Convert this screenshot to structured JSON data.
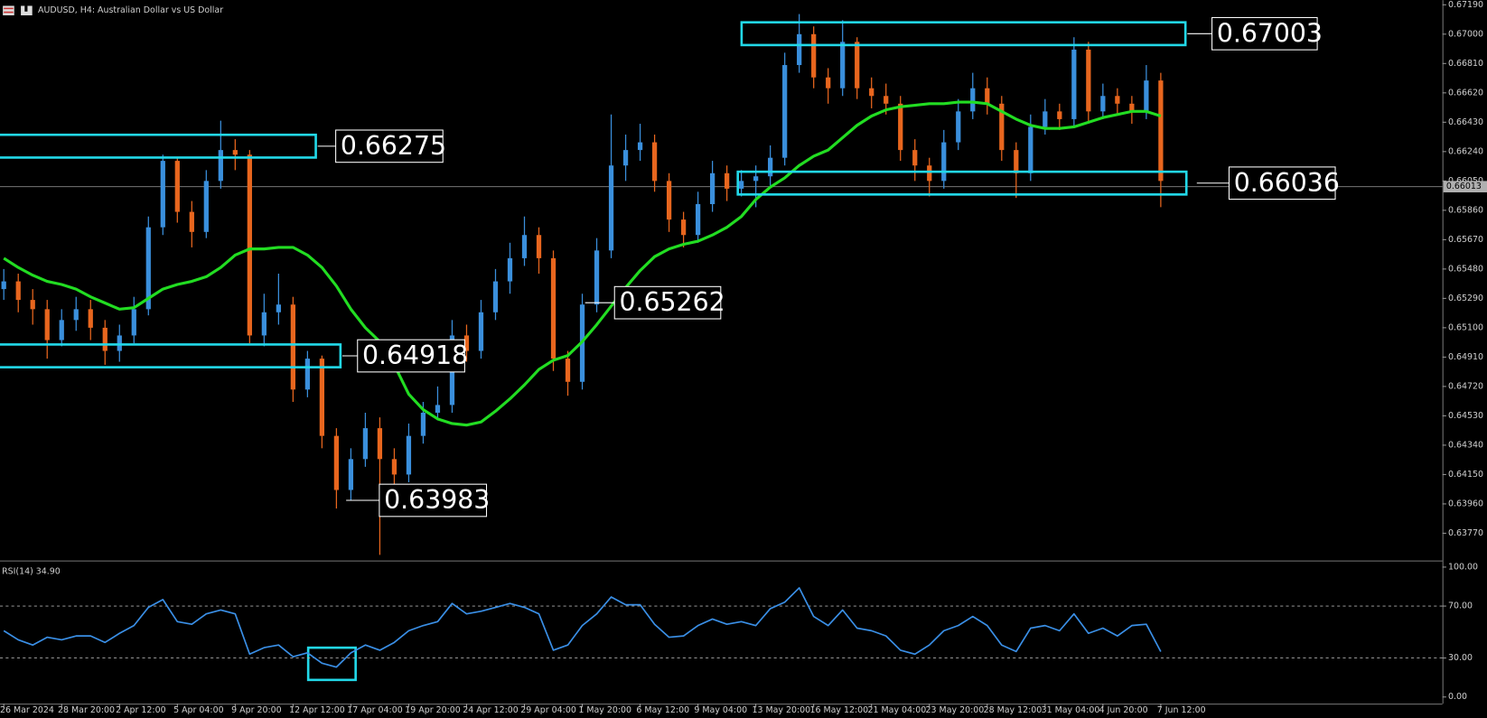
{
  "chart_data": [
    {
      "type": "candlestick",
      "title": "AUDUSD, H4:  Australian Dollar vs US Dollar",
      "categories": [
        "26 Mar 2024",
        null,
        null,
        null,
        "28 Mar 20:00",
        null,
        null,
        null,
        "2 Apr 12:00",
        null,
        null,
        null,
        "5 Apr 04:00",
        null,
        null,
        null,
        "9 Apr 20:00",
        null,
        null,
        null,
        "12 Apr 12:00",
        null,
        null,
        null,
        "17 Apr 04:00",
        null,
        null,
        null,
        "19 Apr 20:00",
        null,
        null,
        null,
        "24 Apr 12:00",
        null,
        null,
        null,
        "29 Apr 04:00",
        null,
        null,
        null,
        "1 May 20:00",
        null,
        null,
        null,
        "6 May 12:00",
        null,
        null,
        null,
        "9 May 04:00",
        null,
        null,
        null,
        "13 May 20:00",
        null,
        null,
        null,
        "16 May 12:00",
        null,
        null,
        null,
        "21 May 04:00",
        null,
        null,
        null,
        "23 May 20:00",
        null,
        null,
        null,
        "28 May 12:00",
        null,
        null,
        null,
        "31 May 04:00",
        null,
        null,
        null,
        "4 Jun 20:00",
        null,
        null,
        null,
        "7 Jun 12:00"
      ],
      "open": [
        0.6535,
        0.654,
        0.6528,
        0.6522,
        0.6502,
        0.6515,
        0.6522,
        0.651,
        0.6495,
        0.6505,
        0.6522,
        0.6575,
        0.6618,
        0.6585,
        0.6572,
        0.6605,
        0.6625,
        0.6622,
        0.6505,
        0.652,
        0.6525,
        0.647,
        0.649,
        0.644,
        0.6405,
        0.6425,
        0.6445,
        0.6425,
        0.6415,
        0.644,
        0.6455,
        0.646,
        0.6505,
        0.6495,
        0.652,
        0.654,
        0.6555,
        0.657,
        0.6555,
        0.649,
        0.6475,
        0.6525,
        0.656,
        0.6615,
        0.6625,
        0.663,
        0.6605,
        0.658,
        0.657,
        0.659,
        0.661,
        0.66,
        0.6605,
        0.6608,
        0.662,
        0.668,
        0.67,
        0.6672,
        0.6665,
        0.6695,
        0.6665,
        0.666,
        0.6655,
        0.6625,
        0.6615,
        0.6605,
        0.663,
        0.665,
        0.6665,
        0.6655,
        0.6625,
        0.661,
        0.664,
        0.665,
        0.6645,
        0.669,
        0.665,
        0.666,
        0.6655,
        0.665,
        0.667
      ],
      "high": [
        0.6548,
        0.6545,
        0.6535,
        0.6528,
        0.6522,
        0.653,
        0.6528,
        0.6515,
        0.6512,
        0.653,
        0.6582,
        0.6622,
        0.662,
        0.6592,
        0.6612,
        0.6644,
        0.6632,
        0.6625,
        0.6532,
        0.6545,
        0.653,
        0.6495,
        0.6492,
        0.6445,
        0.6432,
        0.6455,
        0.6452,
        0.6432,
        0.6448,
        0.6462,
        0.6472,
        0.6515,
        0.6512,
        0.6528,
        0.6548,
        0.6565,
        0.6582,
        0.6575,
        0.656,
        0.6495,
        0.6532,
        0.6568,
        0.6648,
        0.6635,
        0.6642,
        0.6635,
        0.661,
        0.6585,
        0.6598,
        0.6618,
        0.6615,
        0.6612,
        0.6615,
        0.6628,
        0.6688,
        0.6713,
        0.6705,
        0.6678,
        0.6709,
        0.6698,
        0.6672,
        0.6668,
        0.666,
        0.6632,
        0.662,
        0.6638,
        0.6658,
        0.6675,
        0.6672,
        0.666,
        0.663,
        0.6648,
        0.6658,
        0.6655,
        0.6698,
        0.6695,
        0.6668,
        0.6665,
        0.666,
        0.668,
        0.6675
      ],
      "low": [
        0.6528,
        0.652,
        0.6512,
        0.649,
        0.6498,
        0.6508,
        0.6502,
        0.6486,
        0.6488,
        0.65,
        0.6518,
        0.657,
        0.6578,
        0.6562,
        0.6568,
        0.66,
        0.6612,
        0.65,
        0.6498,
        0.6512,
        0.6462,
        0.6465,
        0.6432,
        0.6393,
        0.6398,
        0.642,
        0.6363,
        0.6405,
        0.641,
        0.6435,
        0.645,
        0.6455,
        0.6488,
        0.649,
        0.6515,
        0.6532,
        0.655,
        0.6545,
        0.6482,
        0.6466,
        0.647,
        0.652,
        0.6555,
        0.6605,
        0.6618,
        0.6598,
        0.6572,
        0.6562,
        0.6565,
        0.6585,
        0.6592,
        0.6595,
        0.6588,
        0.6602,
        0.6615,
        0.6675,
        0.6665,
        0.6655,
        0.666,
        0.6658,
        0.6652,
        0.6648,
        0.6618,
        0.6605,
        0.6595,
        0.66,
        0.6625,
        0.6645,
        0.6648,
        0.6618,
        0.6594,
        0.6605,
        0.6635,
        0.6638,
        0.664,
        0.6642,
        0.6645,
        0.6648,
        0.6642,
        0.6645,
        0.6588
      ],
      "close": [
        0.654,
        0.6528,
        0.6522,
        0.6502,
        0.6515,
        0.6522,
        0.651,
        0.6495,
        0.6505,
        0.6522,
        0.6575,
        0.6618,
        0.6585,
        0.6572,
        0.6605,
        0.6625,
        0.6622,
        0.6505,
        0.652,
        0.6525,
        0.647,
        0.649,
        0.644,
        0.6405,
        0.6425,
        0.6445,
        0.6425,
        0.6415,
        0.644,
        0.6455,
        0.646,
        0.6505,
        0.6495,
        0.652,
        0.654,
        0.6555,
        0.657,
        0.6555,
        0.649,
        0.6475,
        0.6525,
        0.656,
        0.6615,
        0.6625,
        0.663,
        0.6605,
        0.658,
        0.657,
        0.659,
        0.661,
        0.66,
        0.6605,
        0.6608,
        0.662,
        0.668,
        0.67,
        0.6672,
        0.6665,
        0.6695,
        0.6665,
        0.666,
        0.6655,
        0.6625,
        0.6615,
        0.6605,
        0.663,
        0.665,
        0.6665,
        0.6655,
        0.6625,
        0.661,
        0.664,
        0.665,
        0.6645,
        0.669,
        0.665,
        0.666,
        0.6655,
        0.665,
        0.667,
        0.6605
      ],
      "ma_values": [
        0.6555,
        0.6549,
        0.6544,
        0.654,
        0.6538,
        0.6535,
        0.653,
        0.6526,
        0.6522,
        0.6523,
        0.6529,
        0.6535,
        0.6538,
        0.654,
        0.6543,
        0.6549,
        0.6557,
        0.6561,
        0.6561,
        0.6562,
        0.6562,
        0.6557,
        0.6549,
        0.6537,
        0.6522,
        0.651,
        0.6501,
        0.6486,
        0.6467,
        0.6457,
        0.6451,
        0.6448,
        0.6447,
        0.6449,
        0.6456,
        0.6464,
        0.6473,
        0.6483,
        0.6489,
        0.6492,
        0.6501,
        0.6512,
        0.6524,
        0.6536,
        0.6547,
        0.6556,
        0.6561,
        0.6564,
        0.6566,
        0.657,
        0.6575,
        0.6582,
        0.6593,
        0.6601,
        0.6607,
        0.6615,
        0.6621,
        0.6625,
        0.6633,
        0.6641,
        0.6647,
        0.6651,
        0.6653,
        0.6654,
        0.6655,
        0.6655,
        0.6656,
        0.6656,
        0.6655,
        0.665,
        0.6645,
        0.6641,
        0.6639,
        0.6639,
        0.664,
        0.6643,
        0.6646,
        0.6648,
        0.665,
        0.665,
        0.6647
      ],
      "ma_color": "#22dd22",
      "up_color": "#3a8fdc",
      "down_color": "#e8661e",
      "box_color": "#22d8e8",
      "annotations": [
        0.67003,
        0.66275,
        0.66036,
        0.65262,
        0.64918,
        0.63983
      ],
      "current_price": 0.66013,
      "ylim": [
        0.636,
        0.6722
      ],
      "yticks": [
        {
          "value": 0.6719,
          "label": "0.67190"
        },
        {
          "value": 0.67,
          "label": "0.67000"
        },
        {
          "value": 0.6681,
          "label": "0.66810"
        },
        {
          "value": 0.6662,
          "label": "0.66620"
        },
        {
          "value": 0.6643,
          "label": "0.66430"
        },
        {
          "value": 0.6624,
          "label": "0.66240"
        },
        {
          "value": 0.6605,
          "label": "0.66050"
        },
        {
          "value": 0.6586,
          "label": "0.65860"
        },
        {
          "value": 0.6567,
          "label": "0.65670"
        },
        {
          "value": 0.6548,
          "label": "0.65480"
        },
        {
          "value": 0.6529,
          "label": "0.65290"
        },
        {
          "value": 0.651,
          "label": "0.65100"
        },
        {
          "value": 0.6491,
          "label": "0.64910"
        },
        {
          "value": 0.6472,
          "label": "0.64720"
        },
        {
          "value": 0.6453,
          "label": "0.64530"
        },
        {
          "value": 0.6434,
          "label": "0.64340"
        },
        {
          "value": 0.6415,
          "label": "0.64150"
        },
        {
          "value": 0.6396,
          "label": "0.63960"
        },
        {
          "value": 0.6377,
          "label": "0.63770"
        }
      ]
    },
    {
      "type": "line",
      "title": "RSI(14) 34.90",
      "color": "#3a8fe6",
      "values": [
        51,
        44,
        40,
        46,
        44,
        47,
        47,
        42,
        49,
        55,
        69,
        75,
        58,
        56,
        64,
        67,
        64,
        33,
        38,
        40,
        31,
        34,
        26,
        23,
        34,
        40,
        36,
        42,
        51,
        55,
        58,
        72,
        64,
        66,
        69,
        72,
        69,
        64,
        36,
        40,
        55,
        64,
        77,
        71,
        71,
        56,
        46,
        47,
        55,
        60,
        56,
        58,
        55,
        68,
        73,
        84,
        62,
        55,
        67,
        53,
        51,
        47,
        36,
        33,
        40,
        51,
        55,
        62,
        55,
        40,
        35,
        53,
        55,
        51,
        64,
        49,
        53,
        47,
        55,
        56,
        34.9
      ],
      "levels": [
        70,
        30
      ],
      "ylim": [
        0,
        100
      ],
      "yticks": [
        {
          "value": 100,
          "label": "100.00"
        },
        {
          "value": 70,
          "label": "70.00"
        },
        {
          "value": 30,
          "label": "30.00"
        },
        {
          "value": 0,
          "label": "0.00"
        }
      ]
    }
  ]
}
